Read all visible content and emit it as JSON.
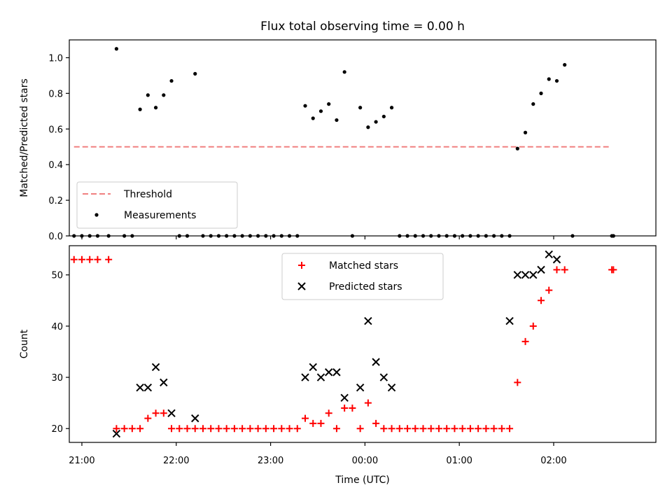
{
  "chart_data": {
    "title": "Flux total observing time = 0.00 h",
    "xlabel": "Time (UTC)",
    "x_ticks": [
      "21:00",
      "22:00",
      "23:00",
      "00:00",
      "01:00",
      "02:00"
    ],
    "x_range": [
      "20:52",
      "03:05"
    ],
    "panels": [
      {
        "type": "scatter",
        "ylabel": "Matched/Predicted stars",
        "ylim": [
          0,
          1.1
        ],
        "y_ticks": [
          "0.0",
          "0.2",
          "0.4",
          "0.6",
          "0.8",
          "1.0"
        ],
        "legend_position": "lower-left",
        "series": [
          {
            "name": "Threshold",
            "style": "dashed-line",
            "color": "#f08080",
            "points": [
              [
                "20:55",
                0.5
              ],
              [
                "02:35",
                0.5
              ]
            ]
          },
          {
            "name": "Measurements",
            "style": "dot",
            "color": "#000000",
            "points": [
              [
                "20:55",
                0.0
              ],
              [
                "21:00",
                0.0
              ],
              [
                "21:05",
                0.0
              ],
              [
                "21:10",
                0.0
              ],
              [
                "21:17",
                0.0
              ],
              [
                "21:22",
                1.05
              ],
              [
                "21:27",
                0.0
              ],
              [
                "21:32",
                0.0
              ],
              [
                "21:37",
                0.71
              ],
              [
                "21:42",
                0.79
              ],
              [
                "21:47",
                0.72
              ],
              [
                "21:52",
                0.79
              ],
              [
                "21:57",
                0.87
              ],
              [
                "22:02",
                0.0
              ],
              [
                "22:07",
                0.0
              ],
              [
                "22:12",
                0.91
              ],
              [
                "22:17",
                0.0
              ],
              [
                "22:22",
                0.0
              ],
              [
                "22:27",
                0.0
              ],
              [
                "22:32",
                0.0
              ],
              [
                "22:37",
                0.0
              ],
              [
                "22:42",
                0.0
              ],
              [
                "22:47",
                0.0
              ],
              [
                "22:52",
                0.0
              ],
              [
                "22:57",
                0.0
              ],
              [
                "23:02",
                0.0
              ],
              [
                "23:07",
                0.0
              ],
              [
                "23:12",
                0.0
              ],
              [
                "23:17",
                0.0
              ],
              [
                "23:22",
                0.73
              ],
              [
                "23:27",
                0.66
              ],
              [
                "23:32",
                0.7
              ],
              [
                "23:37",
                0.74
              ],
              [
                "23:42",
                0.65
              ],
              [
                "23:47",
                0.92
              ],
              [
                "23:52",
                0.0
              ],
              [
                "23:57",
                0.72
              ],
              [
                "00:02",
                0.61
              ],
              [
                "00:07",
                0.64
              ],
              [
                "00:12",
                0.67
              ],
              [
                "00:17",
                0.72
              ],
              [
                "00:22",
                0.0
              ],
              [
                "00:27",
                0.0
              ],
              [
                "00:32",
                0.0
              ],
              [
                "00:37",
                0.0
              ],
              [
                "00:42",
                0.0
              ],
              [
                "00:47",
                0.0
              ],
              [
                "00:52",
                0.0
              ],
              [
                "00:57",
                0.0
              ],
              [
                "01:02",
                0.0
              ],
              [
                "01:07",
                0.0
              ],
              [
                "01:12",
                0.0
              ],
              [
                "01:17",
                0.0
              ],
              [
                "01:22",
                0.0
              ],
              [
                "01:27",
                0.0
              ],
              [
                "01:32",
                0.0
              ],
              [
                "01:37",
                0.49
              ],
              [
                "01:42",
                0.58
              ],
              [
                "01:47",
                0.74
              ],
              [
                "01:52",
                0.8
              ],
              [
                "01:57",
                0.88
              ],
              [
                "02:02",
                0.87
              ],
              [
                "02:07",
                0.96
              ],
              [
                "02:12",
                0.0
              ],
              [
                "02:37",
                0.0
              ],
              [
                "02:38",
                0.0
              ]
            ]
          }
        ]
      },
      {
        "type": "scatter",
        "ylabel": "Count",
        "ylim": [
          17.3,
          55.7
        ],
        "y_ticks": [
          "20",
          "30",
          "40",
          "50"
        ],
        "legend_position": "upper-center",
        "series": [
          {
            "name": "Matched stars",
            "style": "plus",
            "color": "#ff0000",
            "points": [
              [
                "20:55",
                53
              ],
              [
                "21:00",
                53
              ],
              [
                "21:05",
                53
              ],
              [
                "21:10",
                53
              ],
              [
                "21:17",
                53
              ],
              [
                "21:22",
                20
              ],
              [
                "21:27",
                20
              ],
              [
                "21:32",
                20
              ],
              [
                "21:37",
                20
              ],
              [
                "21:42",
                22
              ],
              [
                "21:47",
                23
              ],
              [
                "21:52",
                23
              ],
              [
                "21:57",
                20
              ],
              [
                "22:02",
                20
              ],
              [
                "22:07",
                20
              ],
              [
                "22:12",
                20
              ],
              [
                "22:17",
                20
              ],
              [
                "22:22",
                20
              ],
              [
                "22:27",
                20
              ],
              [
                "22:32",
                20
              ],
              [
                "22:37",
                20
              ],
              [
                "22:42",
                20
              ],
              [
                "22:47",
                20
              ],
              [
                "22:52",
                20
              ],
              [
                "22:57",
                20
              ],
              [
                "23:02",
                20
              ],
              [
                "23:07",
                20
              ],
              [
                "23:12",
                20
              ],
              [
                "23:17",
                20
              ],
              [
                "23:22",
                22
              ],
              [
                "23:27",
                21
              ],
              [
                "23:32",
                21
              ],
              [
                "23:37",
                23
              ],
              [
                "23:42",
                20
              ],
              [
                "23:47",
                24
              ],
              [
                "23:52",
                24
              ],
              [
                "23:57",
                20
              ],
              [
                "00:02",
                25
              ],
              [
                "00:07",
                21
              ],
              [
                "00:12",
                20
              ],
              [
                "00:17",
                20
              ],
              [
                "00:22",
                20
              ],
              [
                "00:27",
                20
              ],
              [
                "00:32",
                20
              ],
              [
                "00:37",
                20
              ],
              [
                "00:42",
                20
              ],
              [
                "00:47",
                20
              ],
              [
                "00:52",
                20
              ],
              [
                "00:57",
                20
              ],
              [
                "01:02",
                20
              ],
              [
                "01:07",
                20
              ],
              [
                "01:12",
                20
              ],
              [
                "01:17",
                20
              ],
              [
                "01:22",
                20
              ],
              [
                "01:27",
                20
              ],
              [
                "01:32",
                20
              ],
              [
                "01:37",
                29
              ],
              [
                "01:42",
                37
              ],
              [
                "01:47",
                40
              ],
              [
                "01:52",
                45
              ],
              [
                "01:57",
                47
              ],
              [
                "02:02",
                51
              ],
              [
                "02:07",
                51
              ],
              [
                "02:37",
                51
              ],
              [
                "02:38",
                51
              ]
            ]
          },
          {
            "name": "Predicted stars",
            "style": "cross",
            "color": "#000000",
            "points": [
              [
                "21:22",
                19
              ],
              [
                "21:37",
                28
              ],
              [
                "21:42",
                28
              ],
              [
                "21:47",
                32
              ],
              [
                "21:52",
                29
              ],
              [
                "21:57",
                23
              ],
              [
                "22:12",
                22
              ],
              [
                "23:22",
                30
              ],
              [
                "23:27",
                32
              ],
              [
                "23:32",
                30
              ],
              [
                "23:37",
                31
              ],
              [
                "23:42",
                31
              ],
              [
                "23:47",
                26
              ],
              [
                "23:57",
                28
              ],
              [
                "00:02",
                41
              ],
              [
                "00:07",
                33
              ],
              [
                "00:12",
                30
              ],
              [
                "00:17",
                28
              ],
              [
                "01:32",
                41
              ],
              [
                "01:37",
                50
              ],
              [
                "01:42",
                50
              ],
              [
                "01:47",
                50
              ],
              [
                "01:52",
                51
              ],
              [
                "01:57",
                54
              ],
              [
                "02:02",
                53
              ]
            ]
          }
        ]
      }
    ]
  }
}
